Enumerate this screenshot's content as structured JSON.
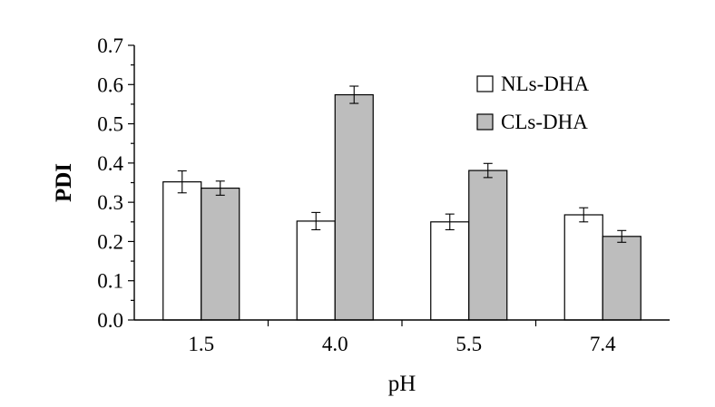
{
  "chart_data": {
    "type": "bar",
    "title": "",
    "xlabel": "pH",
    "ylabel": "PDI",
    "categories": [
      "1.5",
      "4.0",
      "5.5",
      "7.4"
    ],
    "ylim": [
      0.0,
      0.7
    ],
    "yticks": [
      "0.0",
      "0.1",
      "0.2",
      "0.3",
      "0.4",
      "0.5",
      "0.6",
      "0.7"
    ],
    "grid": false,
    "legend_position": "top-right",
    "series": [
      {
        "name": "NLs-DHA",
        "color": "#ffffff",
        "values": [
          0.352,
          0.252,
          0.25,
          0.268
        ],
        "errors": [
          0.028,
          0.022,
          0.02,
          0.018
        ]
      },
      {
        "name": "CLs-DHA",
        "color": "#bdbdbd",
        "values": [
          0.336,
          0.574,
          0.381,
          0.213
        ],
        "errors": [
          0.018,
          0.022,
          0.018,
          0.015
        ]
      }
    ]
  }
}
